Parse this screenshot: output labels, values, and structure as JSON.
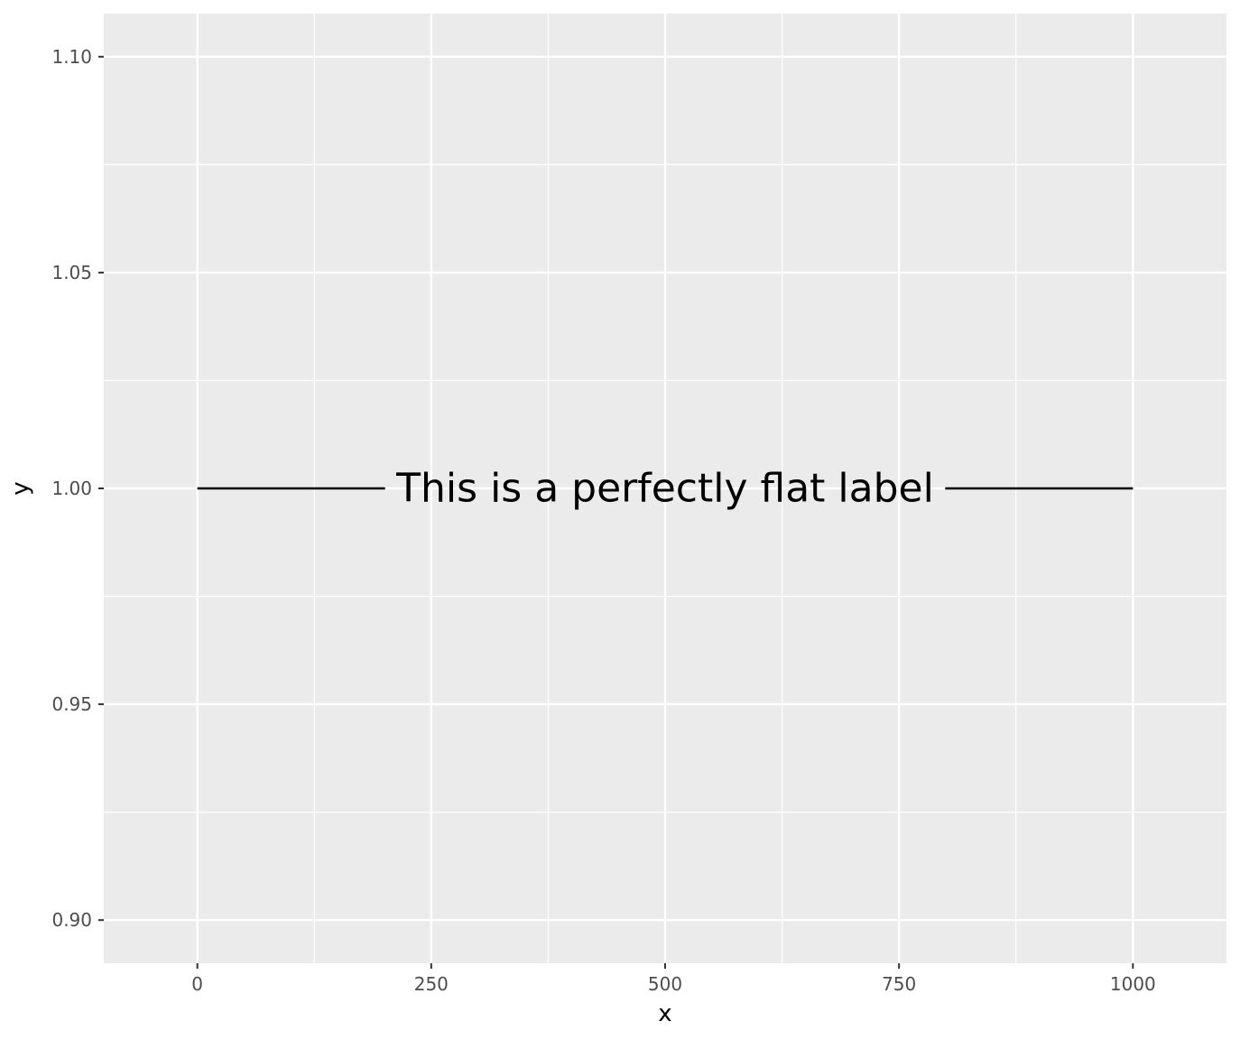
{
  "chart_data": {
    "type": "line",
    "title": "",
    "xlabel": "x",
    "ylabel": "y",
    "xlim": [
      -100,
      1100
    ],
    "ylim": [
      0.89,
      1.11
    ],
    "x_ticks": [
      0,
      250,
      500,
      750,
      1000
    ],
    "x_tick_labels": [
      "0",
      "250",
      "500",
      "750",
      "1000"
    ],
    "y_ticks": [
      0.9,
      0.95,
      1.0,
      1.05,
      1.1
    ],
    "y_tick_labels": [
      "0.90",
      "0.95",
      "1.00",
      "1.05",
      "1.10"
    ],
    "series": [
      {
        "x": [
          0,
          1000
        ],
        "y": [
          1.0,
          1.0
        ],
        "label": "This is a perfectly flat label",
        "label_x": 500,
        "color": "#000000"
      }
    ],
    "grid": true,
    "panel_background": "#ebebeb",
    "grid_color": "#ffffff"
  }
}
